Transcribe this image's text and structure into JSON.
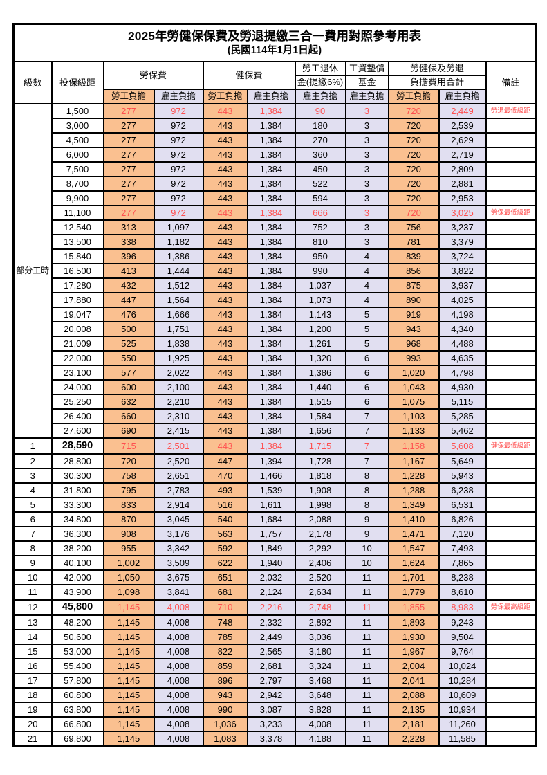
{
  "table": {
    "title": "2025年勞健保保費及勞退提繳三合一費用對照參考用表",
    "subtitle": "(民國114年1月1日起)",
    "colors": {
      "employee_bg": "#FAC090",
      "employer_bg": "#E1DFF1",
      "highlight_red": "#FF5050",
      "grid": "#000000"
    },
    "header": {
      "level": "級數",
      "bracket": "投保級距",
      "labor_group": "勞保費",
      "health_group": "健保費",
      "pension_line1": "勞工退休",
      "pension_line2": "金(提繳6%)",
      "wage_line1": "工資墊償",
      "wage_line2": "基金",
      "total_line1": "勞健保及勞退",
      "total_line2": "負擔費用合計",
      "note": "備註",
      "employee": "勞工負擔",
      "employer": "雇主負擔"
    },
    "part_time_label": "部分工時",
    "part_time_rows": 23,
    "rows": [
      {
        "level": "",
        "bracket": "1,500",
        "values": [
          "277",
          "972",
          "443",
          "1,384",
          "90",
          "3",
          "720",
          "2,449"
        ],
        "note": "勞退最低級距",
        "special": true
      },
      {
        "level": "",
        "bracket": "3,000",
        "values": [
          "277",
          "972",
          "443",
          "1,384",
          "180",
          "3",
          "720",
          "2,539"
        ],
        "note": "",
        "special": false
      },
      {
        "level": "",
        "bracket": "4,500",
        "values": [
          "277",
          "972",
          "443",
          "1,384",
          "270",
          "3",
          "720",
          "2,629"
        ],
        "note": "",
        "special": false
      },
      {
        "level": "",
        "bracket": "6,000",
        "values": [
          "277",
          "972",
          "443",
          "1,384",
          "360",
          "3",
          "720",
          "2,719"
        ],
        "note": "",
        "special": false
      },
      {
        "level": "",
        "bracket": "7,500",
        "values": [
          "277",
          "972",
          "443",
          "1,384",
          "450",
          "3",
          "720",
          "2,809"
        ],
        "note": "",
        "special": false
      },
      {
        "level": "",
        "bracket": "8,700",
        "values": [
          "277",
          "972",
          "443",
          "1,384",
          "522",
          "3",
          "720",
          "2,881"
        ],
        "note": "",
        "special": false
      },
      {
        "level": "",
        "bracket": "9,900",
        "values": [
          "277",
          "972",
          "443",
          "1,384",
          "594",
          "3",
          "720",
          "2,953"
        ],
        "note": "",
        "special": false
      },
      {
        "level": "",
        "bracket": "11,100",
        "values": [
          "277",
          "972",
          "443",
          "1,384",
          "666",
          "3",
          "720",
          "3,025"
        ],
        "note": "勞保最低級距",
        "special": true
      },
      {
        "level": "",
        "bracket": "12,540",
        "values": [
          "313",
          "1,097",
          "443",
          "1,384",
          "752",
          "3",
          "756",
          "3,237"
        ],
        "note": "",
        "special": false
      },
      {
        "level": "",
        "bracket": "13,500",
        "values": [
          "338",
          "1,182",
          "443",
          "1,384",
          "810",
          "3",
          "781",
          "3,379"
        ],
        "note": "",
        "special": false
      },
      {
        "level": "",
        "bracket": "15,840",
        "values": [
          "396",
          "1,386",
          "443",
          "1,384",
          "950",
          "4",
          "839",
          "3,724"
        ],
        "note": "",
        "special": false
      },
      {
        "level": "",
        "bracket": "16,500",
        "values": [
          "413",
          "1,444",
          "443",
          "1,384",
          "990",
          "4",
          "856",
          "3,822"
        ],
        "note": "",
        "special": false
      },
      {
        "level": "",
        "bracket": "17,280",
        "values": [
          "432",
          "1,512",
          "443",
          "1,384",
          "1,037",
          "4",
          "875",
          "3,937"
        ],
        "note": "",
        "special": false
      },
      {
        "level": "",
        "bracket": "17,880",
        "values": [
          "447",
          "1,564",
          "443",
          "1,384",
          "1,073",
          "4",
          "890",
          "4,025"
        ],
        "note": "",
        "special": false
      },
      {
        "level": "",
        "bracket": "19,047",
        "values": [
          "476",
          "1,666",
          "443",
          "1,384",
          "1,143",
          "5",
          "919",
          "4,198"
        ],
        "note": "",
        "special": false
      },
      {
        "level": "",
        "bracket": "20,008",
        "values": [
          "500",
          "1,751",
          "443",
          "1,384",
          "1,200",
          "5",
          "943",
          "4,340"
        ],
        "note": "",
        "special": false
      },
      {
        "level": "",
        "bracket": "21,009",
        "values": [
          "525",
          "1,838",
          "443",
          "1,384",
          "1,261",
          "5",
          "968",
          "4,488"
        ],
        "note": "",
        "special": false
      },
      {
        "level": "",
        "bracket": "22,000",
        "values": [
          "550",
          "1,925",
          "443",
          "1,384",
          "1,320",
          "6",
          "993",
          "4,635"
        ],
        "note": "",
        "special": false
      },
      {
        "level": "",
        "bracket": "23,100",
        "values": [
          "577",
          "2,022",
          "443",
          "1,384",
          "1,386",
          "6",
          "1,020",
          "4,798"
        ],
        "note": "",
        "special": false
      },
      {
        "level": "",
        "bracket": "24,000",
        "values": [
          "600",
          "2,100",
          "443",
          "1,384",
          "1,440",
          "6",
          "1,043",
          "4,930"
        ],
        "note": "",
        "special": false
      },
      {
        "level": "",
        "bracket": "25,250",
        "values": [
          "632",
          "2,210",
          "443",
          "1,384",
          "1,515",
          "6",
          "1,075",
          "5,115"
        ],
        "note": "",
        "special": false
      },
      {
        "level": "",
        "bracket": "26,400",
        "values": [
          "660",
          "2,310",
          "443",
          "1,384",
          "1,584",
          "7",
          "1,103",
          "5,285"
        ],
        "note": "",
        "special": false
      },
      {
        "level": "",
        "bracket": "27,600",
        "values": [
          "690",
          "2,415",
          "443",
          "1,384",
          "1,656",
          "7",
          "1,133",
          "5,462"
        ],
        "note": "",
        "special": false
      },
      {
        "level": "1",
        "bracket": "28,590",
        "values": [
          "715",
          "2,501",
          "443",
          "1,384",
          "1,715",
          "7",
          "1,158",
          "5,608"
        ],
        "note": "健保最低級距",
        "special": true
      },
      {
        "level": "2",
        "bracket": "28,800",
        "values": [
          "720",
          "2,520",
          "447",
          "1,394",
          "1,728",
          "7",
          "1,167",
          "5,649"
        ],
        "note": "",
        "special": false
      },
      {
        "level": "3",
        "bracket": "30,300",
        "values": [
          "758",
          "2,651",
          "470",
          "1,466",
          "1,818",
          "8",
          "1,228",
          "5,943"
        ],
        "note": "",
        "special": false
      },
      {
        "level": "4",
        "bracket": "31,800",
        "values": [
          "795",
          "2,783",
          "493",
          "1,539",
          "1,908",
          "8",
          "1,288",
          "6,238"
        ],
        "note": "",
        "special": false
      },
      {
        "level": "5",
        "bracket": "33,300",
        "values": [
          "833",
          "2,914",
          "516",
          "1,611",
          "1,998",
          "8",
          "1,349",
          "6,531"
        ],
        "note": "",
        "special": false
      },
      {
        "level": "6",
        "bracket": "34,800",
        "values": [
          "870",
          "3,045",
          "540",
          "1,684",
          "2,088",
          "9",
          "1,410",
          "6,826"
        ],
        "note": "",
        "special": false
      },
      {
        "level": "7",
        "bracket": "36,300",
        "values": [
          "908",
          "3,176",
          "563",
          "1,757",
          "2,178",
          "9",
          "1,471",
          "7,120"
        ],
        "note": "",
        "special": false
      },
      {
        "level": "8",
        "bracket": "38,200",
        "values": [
          "955",
          "3,342",
          "592",
          "1,849",
          "2,292",
          "10",
          "1,547",
          "7,493"
        ],
        "note": "",
        "special": false
      },
      {
        "level": "9",
        "bracket": "40,100",
        "values": [
          "1,002",
          "3,509",
          "622",
          "1,940",
          "2,406",
          "10",
          "1,624",
          "7,865"
        ],
        "note": "",
        "special": false
      },
      {
        "level": "10",
        "bracket": "42,000",
        "values": [
          "1,050",
          "3,675",
          "651",
          "2,032",
          "2,520",
          "11",
          "1,701",
          "8,238"
        ],
        "note": "",
        "special": false
      },
      {
        "level": "11",
        "bracket": "43,900",
        "values": [
          "1,098",
          "3,841",
          "681",
          "2,124",
          "2,634",
          "11",
          "1,779",
          "8,610"
        ],
        "note": "",
        "special": false
      },
      {
        "level": "12",
        "bracket": "45,800",
        "values": [
          "1,145",
          "4,008",
          "710",
          "2,216",
          "2,748",
          "11",
          "1,855",
          "8,983"
        ],
        "note": "勞保最高級距",
        "special": true
      },
      {
        "level": "13",
        "bracket": "48,200",
        "values": [
          "1,145",
          "4,008",
          "748",
          "2,332",
          "2,892",
          "11",
          "1,893",
          "9,243"
        ],
        "note": "",
        "special": false
      },
      {
        "level": "14",
        "bracket": "50,600",
        "values": [
          "1,145",
          "4,008",
          "785",
          "2,449",
          "3,036",
          "11",
          "1,930",
          "9,504"
        ],
        "note": "",
        "special": false
      },
      {
        "level": "15",
        "bracket": "53,000",
        "values": [
          "1,145",
          "4,008",
          "822",
          "2,565",
          "3,180",
          "11",
          "1,967",
          "9,764"
        ],
        "note": "",
        "special": false
      },
      {
        "level": "16",
        "bracket": "55,400",
        "values": [
          "1,145",
          "4,008",
          "859",
          "2,681",
          "3,324",
          "11",
          "2,004",
          "10,024"
        ],
        "note": "",
        "special": false
      },
      {
        "level": "17",
        "bracket": "57,800",
        "values": [
          "1,145",
          "4,008",
          "896",
          "2,797",
          "3,468",
          "11",
          "2,041",
          "10,284"
        ],
        "note": "",
        "special": false
      },
      {
        "level": "18",
        "bracket": "60,800",
        "values": [
          "1,145",
          "4,008",
          "943",
          "2,942",
          "3,648",
          "11",
          "2,088",
          "10,609"
        ],
        "note": "",
        "special": false
      },
      {
        "level": "19",
        "bracket": "63,800",
        "values": [
          "1,145",
          "4,008",
          "990",
          "3,087",
          "3,828",
          "11",
          "2,135",
          "10,934"
        ],
        "note": "",
        "special": false
      },
      {
        "level": "20",
        "bracket": "66,800",
        "values": [
          "1,145",
          "4,008",
          "1,036",
          "3,233",
          "4,008",
          "11",
          "2,181",
          "11,260"
        ],
        "note": "",
        "special": false
      },
      {
        "level": "21",
        "bracket": "69,800",
        "values": [
          "1,145",
          "4,008",
          "1,083",
          "3,378",
          "4,188",
          "11",
          "2,228",
          "11,585"
        ],
        "note": "",
        "special": false
      }
    ]
  }
}
